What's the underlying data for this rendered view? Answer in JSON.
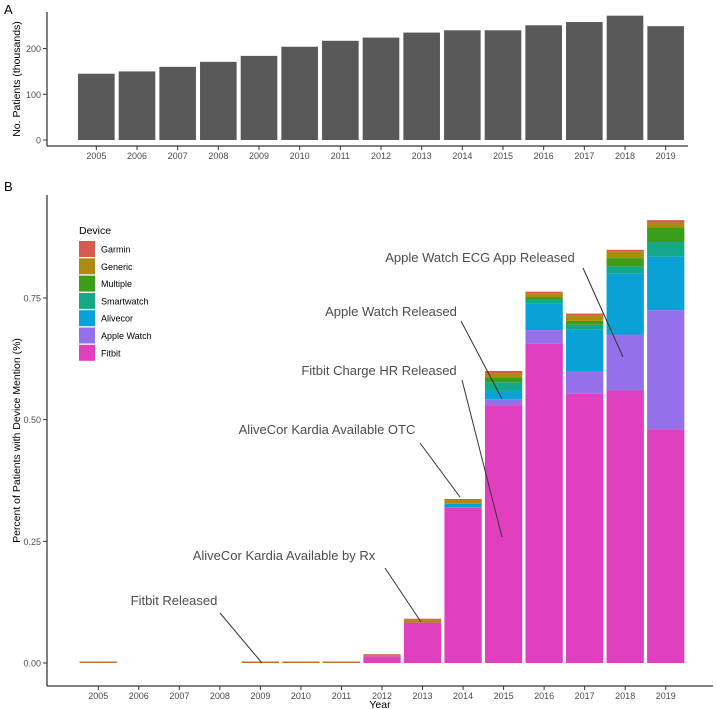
{
  "chart_data": [
    {
      "panel": "A",
      "type": "bar",
      "xlabel": "",
      "ylabel": "No. Patients (thousands)",
      "categories": [
        "2005",
        "2006",
        "2007",
        "2008",
        "2009",
        "2010",
        "2011",
        "2012",
        "2013",
        "2014",
        "2015",
        "2016",
        "2017",
        "2018",
        "2019"
      ],
      "values": [
        145,
        150,
        160,
        171,
        184,
        204,
        217,
        224,
        235,
        240,
        240,
        251,
        258,
        272,
        249
      ],
      "ylim": [
        0,
        280
      ],
      "yticks": [
        0,
        100,
        200
      ],
      "bar_color": "#595959"
    },
    {
      "panel": "B",
      "type": "bar",
      "stacked": true,
      "xlabel": "Year",
      "ylabel": "Percent of Patients with Device Mention (%)",
      "categories": [
        "2005",
        "2006",
        "2007",
        "2008",
        "2009",
        "2010",
        "2011",
        "2012",
        "2013",
        "2014",
        "2015",
        "2016",
        "2017",
        "2018",
        "2019"
      ],
      "ylim": [
        0,
        0.95
      ],
      "yticks": [
        0.0,
        0.25,
        0.5,
        0.75
      ],
      "ytick_labels": [
        "0.00",
        "0.25",
        "0.50",
        "0.75"
      ],
      "legend": {
        "title": "Device",
        "position": "top-left"
      },
      "series": [
        {
          "name": "Fitbit",
          "color": "#E040C0",
          "values": [
            0,
            0,
            0,
            0,
            0,
            0,
            0,
            0.014,
            0.083,
            0.32,
            0.53,
            0.657,
            0.553,
            0.56,
            0.48
          ]
        },
        {
          "name": "Apple Watch",
          "color": "#9470EA",
          "values": [
            0,
            0,
            0,
            0,
            0,
            0,
            0,
            0,
            0,
            0,
            0.012,
            0.027,
            0.047,
            0.115,
            0.245
          ]
        },
        {
          "name": "Alivecor",
          "color": "#0AA1D6",
          "values": [
            0,
            0,
            0,
            0,
            0,
            0,
            0,
            0,
            0,
            0.007,
            0.017,
            0.055,
            0.085,
            0.125,
            0.11
          ]
        },
        {
          "name": "Smartwatch",
          "color": "#12A889",
          "values": [
            0,
            0,
            0,
            0,
            0,
            0,
            0,
            0,
            0,
            0,
            0.018,
            0.008,
            0.01,
            0.015,
            0.03
          ]
        },
        {
          "name": "Multiple",
          "color": "#3B9D18",
          "values": [
            0,
            0,
            0,
            0,
            0,
            0,
            0,
            0,
            0,
            0,
            0.01,
            0.005,
            0.008,
            0.017,
            0.03
          ]
        },
        {
          "name": "Generic",
          "color": "#AE8A0F",
          "values": [
            0.001,
            0,
            0,
            0,
            0.001,
            0.001,
            0.001,
            0.002,
            0.006,
            0.008,
            0.008,
            0.008,
            0.012,
            0.013,
            0.01
          ]
        },
        {
          "name": "Garmin",
          "color": "#D65A4E",
          "values": [
            0.001,
            0,
            0,
            0,
            0.001,
            0.001,
            0.001,
            0.002,
            0.002,
            0.002,
            0.005,
            0.003,
            0.003,
            0.004,
            0.005
          ]
        }
      ],
      "annotations": [
        {
          "text": "Fitbit Released",
          "year": "2009",
          "value": 0.0
        },
        {
          "text": "AliveCor Kardia Available by Rx",
          "year": "2013",
          "value": 0.09
        },
        {
          "text": "AliveCor Kardia Available OTC",
          "year": "2014",
          "value": 0.34
        },
        {
          "text": "Fitbit Charge HR Released",
          "year": "2015",
          "value": 0.26
        },
        {
          "text": "Apple Watch Released",
          "year": "2015",
          "value": 0.54
        },
        {
          "text": "Apple Watch ECG App Released",
          "year": "2018",
          "value": 0.62
        }
      ]
    }
  ],
  "panel_labels": {
    "a": "A",
    "b": "B"
  }
}
